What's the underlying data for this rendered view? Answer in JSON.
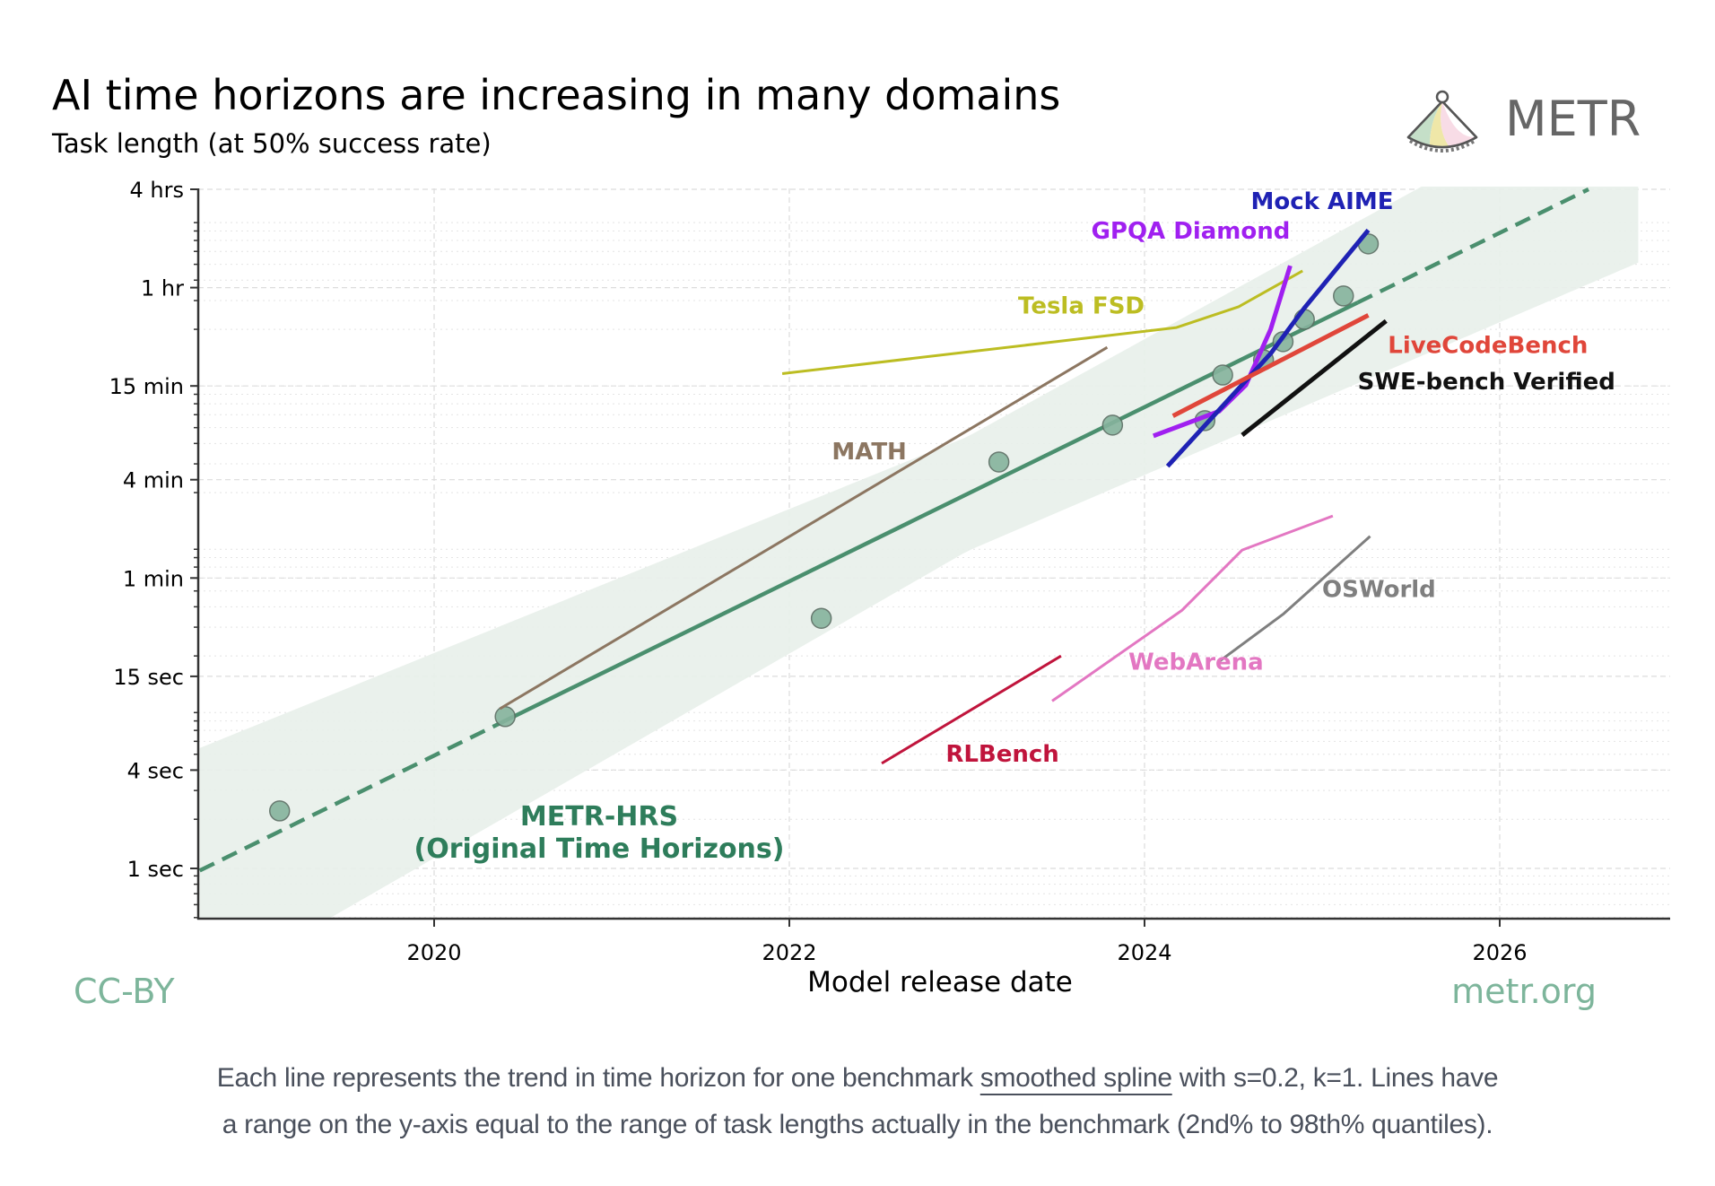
{
  "header": {
    "title": "AI time horizons are increasing in many domains",
    "subtitle": "Task length (at 50% success rate)",
    "brand": "METR",
    "brand_icon": "pendulum-fan-logo-icon"
  },
  "footer": {
    "license": "CC-BY",
    "site": "metr.org",
    "caption_line1_before": "Each line represents the trend in time horizon for one benchmark ",
    "caption_link": "smoothed spline",
    "caption_line1_after": " with s=0.2, k=1. Lines have",
    "caption_line2": "a range on the y-axis equal to the range of task lengths actually in the benchmark (2nd% to 98th% quantiles)."
  },
  "colors": {
    "metr_green": "#4a8f6e",
    "band": "#e8efea",
    "point_fill": "#86b39d",
    "point_stroke": "#5b6e63"
  },
  "chart_data": {
    "type": "line",
    "title": "AI time horizons are increasing in many domains",
    "subtitle": "Task length (at 50% success rate)",
    "xlabel": "Model release date",
    "ylabel": "Task length (at 50% success rate)",
    "yscale": "log",
    "y_unit": "seconds",
    "xlim": [
      2018.68,
      2026.8
    ],
    "ylim_seconds": [
      0.63,
      14400
    ],
    "grid": true,
    "x_ticks": [
      {
        "value": 2020,
        "label": "2020"
      },
      {
        "value": 2022,
        "label": "2022"
      },
      {
        "value": 2024,
        "label": "2024"
      },
      {
        "value": 2026,
        "label": "2026"
      }
    ],
    "y_ticks": [
      {
        "value": 1,
        "label": "1 sec"
      },
      {
        "value": 4,
        "label": "4 sec"
      },
      {
        "value": 15,
        "label": "15 sec"
      },
      {
        "value": 60,
        "label": "1 min"
      },
      {
        "value": 240,
        "label": "4 min"
      },
      {
        "value": 900,
        "label": "15 min"
      },
      {
        "value": 3600,
        "label": "1 hr"
      },
      {
        "value": 14400,
        "label": "4 hrs"
      }
    ],
    "metr_trend": {
      "name": "METR-HRS (Original Time Horizons)",
      "label_line1": "METR-HRS",
      "label_line2": "(Original Time Horizons)",
      "color": "#4a8f6e",
      "x_start": 2018.68,
      "y_start": 0.97,
      "x_end": 2026.5,
      "y_end": 14400,
      "solid_from": 2020.4,
      "solid_to": 2025.2,
      "band_log10_halfwidth_start": 0.75,
      "band_log10_halfwidth_mid": 0.35,
      "band_log10_halfwidth_end": 0.6
    },
    "metr_points": [
      {
        "x": 2019.13,
        "y": 2.25
      },
      {
        "x": 2020.4,
        "y": 8.5
      },
      {
        "x": 2022.18,
        "y": 34
      },
      {
        "x": 2023.18,
        "y": 308
      },
      {
        "x": 2023.82,
        "y": 518
      },
      {
        "x": 2024.34,
        "y": 552
      },
      {
        "x": 2024.44,
        "y": 1050
      },
      {
        "x": 2024.67,
        "y": 1300
      },
      {
        "x": 2024.78,
        "y": 1680
      },
      {
        "x": 2024.9,
        "y": 2300
      },
      {
        "x": 2025.12,
        "y": 3200
      },
      {
        "x": 2025.26,
        "y": 6670
      }
    ],
    "series": [
      {
        "name": "Tesla FSD",
        "color": "#bcbd22",
        "width": 3,
        "label_x": 2024.0,
        "label_y": 2500,
        "label_anchor": "end",
        "points": [
          [
            2021.96,
            1070
          ],
          [
            2024.18,
            2050
          ],
          [
            2024.53,
            2750
          ],
          [
            2024.89,
            4560
          ]
        ]
      },
      {
        "name": "MATH",
        "color": "#8c7661",
        "width": 3,
        "label_x": 2022.45,
        "label_y": 320,
        "label_anchor": "middle",
        "points": [
          [
            2020.37,
            9.5
          ],
          [
            2023.79,
            1550
          ]
        ]
      },
      {
        "name": "GPQA Diamond",
        "color": "#a020f0",
        "width": 5,
        "label_x": 2024.82,
        "label_y": 7200,
        "label_anchor": "end",
        "points": [
          [
            2024.05,
            445
          ],
          [
            2024.42,
            630
          ],
          [
            2024.57,
            910
          ],
          [
            2024.71,
            2000
          ],
          [
            2024.82,
            4900
          ]
        ]
      },
      {
        "name": "Mock AIME",
        "color": "#1f22b4",
        "width": 5,
        "label_x": 2025.0,
        "label_y": 10900,
        "label_anchor": "middle",
        "points": [
          [
            2024.13,
            290
          ],
          [
            2024.71,
            1420
          ],
          [
            2024.9,
            2700
          ],
          [
            2025.26,
            8100
          ]
        ]
      },
      {
        "name": "LiveCodeBench",
        "color": "#e0463a",
        "width": 5,
        "label_x": 2025.37,
        "label_y": 1430,
        "label_anchor": "start",
        "points": [
          [
            2024.16,
            590
          ],
          [
            2025.26,
            2440
          ]
        ]
      },
      {
        "name": "SWE-bench Verified",
        "color": "#111111",
        "width": 5,
        "label_x": 2025.2,
        "label_y": 860,
        "label_anchor": "start",
        "points": [
          [
            2024.55,
            450
          ],
          [
            2025.36,
            2250
          ]
        ]
      },
      {
        "name": "WebArena",
        "color": "#e377c2",
        "width": 3,
        "label_x": 2024.29,
        "label_y": 16.5,
        "label_anchor": "middle",
        "points": [
          [
            2023.48,
            10.6
          ],
          [
            2024.21,
            38
          ],
          [
            2024.55,
            89
          ],
          [
            2025.06,
            144
          ]
        ]
      },
      {
        "name": "OSWorld",
        "color": "#7f7f7f",
        "width": 3,
        "label_x": 2025.0,
        "label_y": 46,
        "label_anchor": "start",
        "points": [
          [
            2024.42,
            18.5
          ],
          [
            2024.78,
            36
          ],
          [
            2025.27,
            108
          ]
        ]
      },
      {
        "name": "RLBench",
        "color": "#c0143c",
        "width": 3,
        "label_x": 2023.2,
        "label_y": 4.5,
        "label_anchor": "middle",
        "points": [
          [
            2022.52,
            4.4
          ],
          [
            2023.53,
            20
          ]
        ]
      }
    ]
  }
}
